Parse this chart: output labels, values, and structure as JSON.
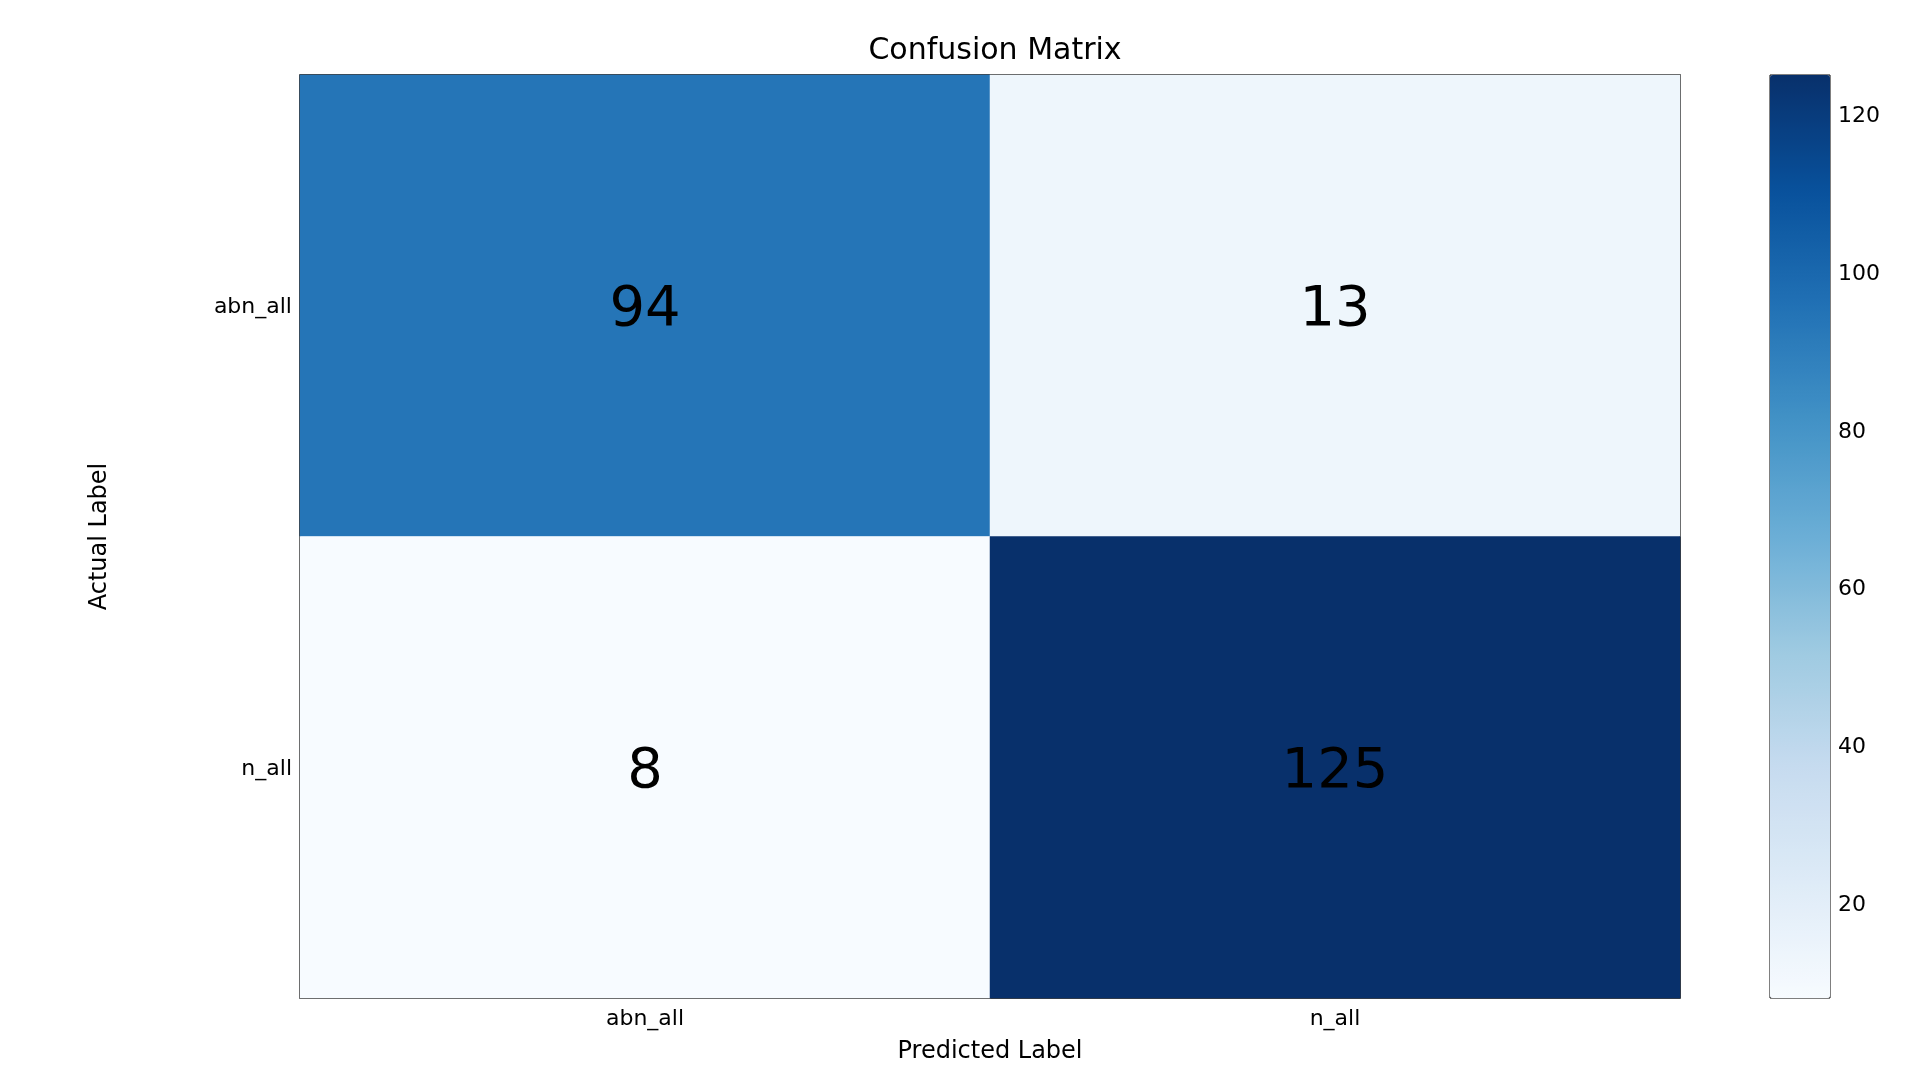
{
  "chart_data": {
    "type": "heatmap",
    "title": "Confusion Matrix",
    "xlabel": "Predicted Label",
    "ylabel": "Actual Label",
    "categories": [
      "abn_all",
      "n_all"
    ],
    "y_categories": [
      "abn_all",
      "n_all"
    ],
    "cells": [
      [
        94,
        13
      ],
      [
        8,
        125
      ]
    ],
    "data_labels": true,
    "clim": [
      8,
      125
    ],
    "cticks": [
      20,
      40,
      60,
      80,
      100,
      120
    ]
  }
}
